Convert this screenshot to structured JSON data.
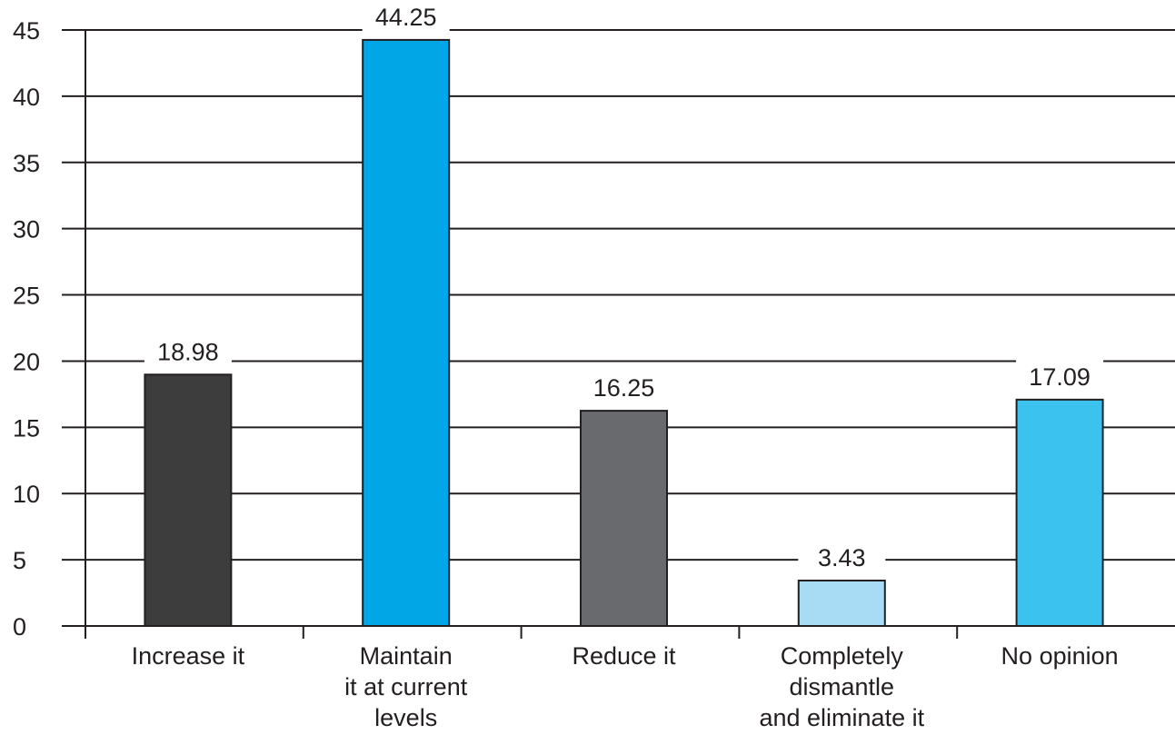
{
  "chart_data": {
    "type": "bar",
    "categories": [
      [
        "Increase it"
      ],
      [
        "Maintain",
        "it at current",
        "levels"
      ],
      [
        "Reduce it"
      ],
      [
        "Completely",
        "dismantle",
        "and eliminate it"
      ],
      [
        "No opinion"
      ]
    ],
    "values": [
      18.98,
      44.25,
      16.25,
      3.43,
      17.09
    ],
    "data_labels": [
      "18.98",
      "44.25",
      "16.25",
      "3.43",
      "17.09"
    ],
    "bar_colors": [
      "#3d3d3d",
      "#00a6e6",
      "#696a6d",
      "#a8dcf5",
      "#3cc2ef"
    ],
    "ylim": [
      0,
      45
    ],
    "yticks": [
      0,
      5,
      10,
      15,
      20,
      25,
      30,
      35,
      40,
      45
    ],
    "grid": true,
    "title": "",
    "xlabel": "",
    "ylabel": ""
  }
}
